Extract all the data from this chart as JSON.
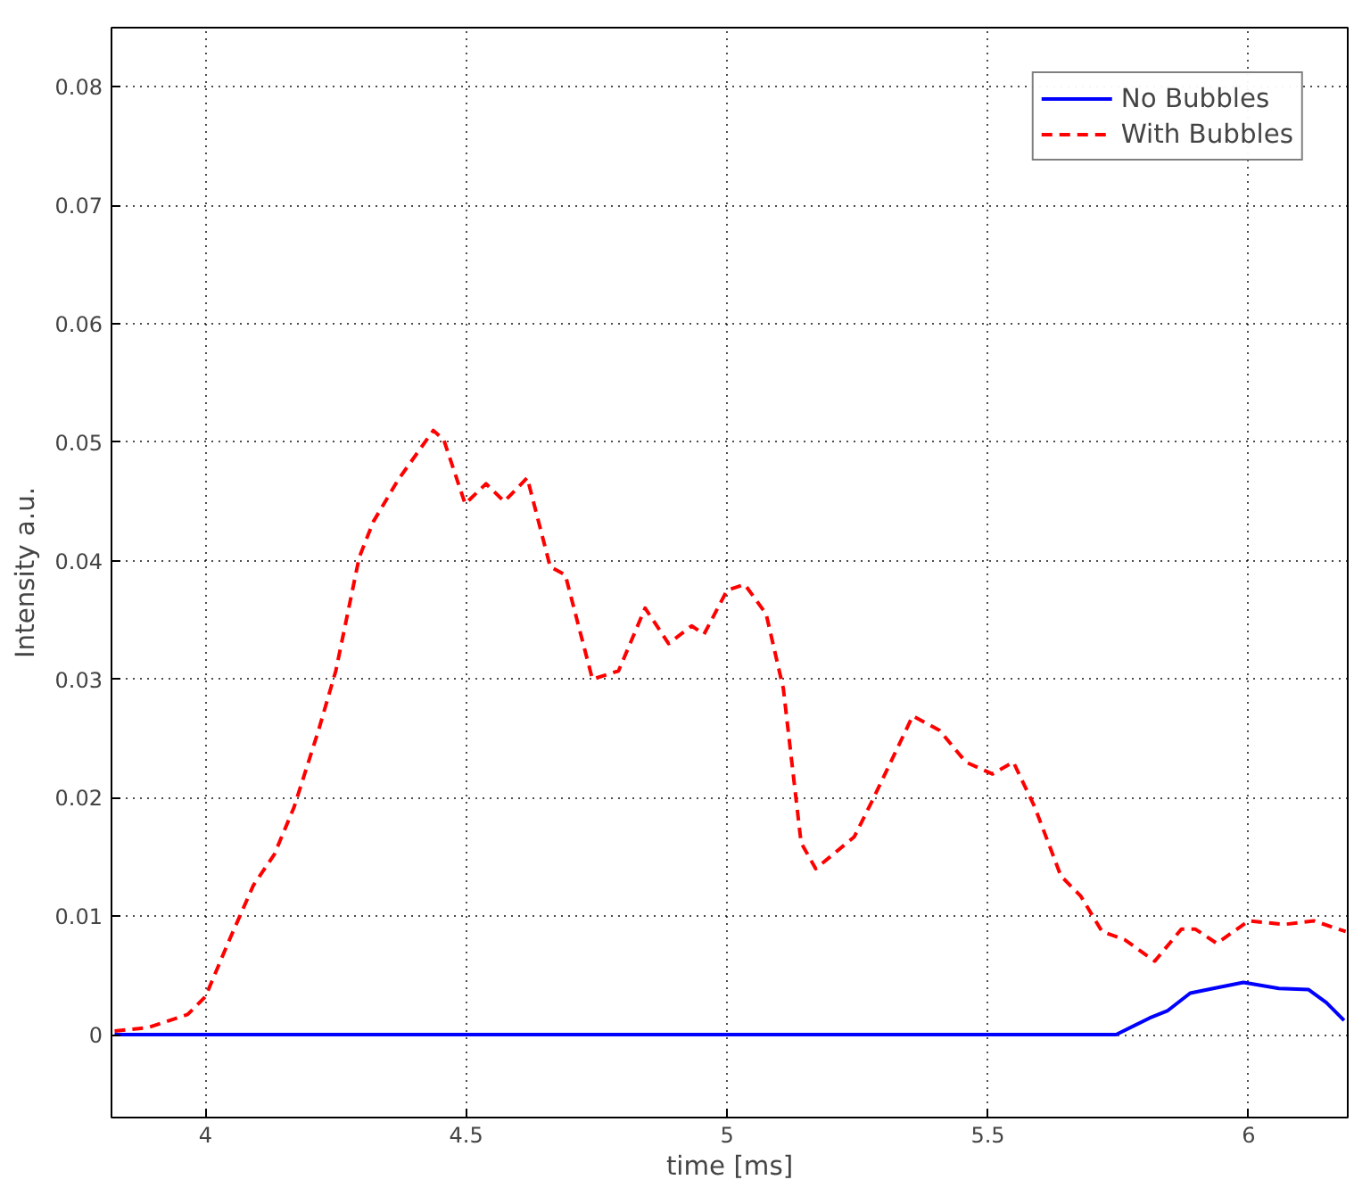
{
  "chart_data": {
    "type": "line",
    "xlabel": "time [ms]",
    "ylabel": "Intensity a.u.",
    "xlim": [
      3.82,
      6.19
    ],
    "ylim": [
      -0.007,
      0.085
    ],
    "xticks": [
      4,
      4.5,
      5,
      5.5,
      6
    ],
    "yticks": [
      0,
      0.01,
      0.02,
      0.03,
      0.04,
      0.05,
      0.06,
      0.07,
      0.08
    ],
    "grid": true,
    "legend": "top right",
    "series": [
      {
        "name": "No Bubbles",
        "color": "#0000ff",
        "line_style": "solid",
        "x": [
          3.826,
          4.5,
          5.0,
          5.5,
          5.746,
          5.81,
          5.844,
          5.888,
          5.932,
          5.99,
          6.058,
          6.115,
          6.149,
          6.183
        ],
        "values": [
          0,
          0,
          0,
          0,
          0,
          0.0014,
          0.002,
          0.0035,
          0.0039,
          0.0044,
          0.0039,
          0.0038,
          0.0027,
          0.0012
        ]
      },
      {
        "name": "With Bubbles",
        "color": "#ff0000",
        "line_style": "dashed",
        "x": [
          3.826,
          3.89,
          3.966,
          4.0,
          4.047,
          4.092,
          4.132,
          4.17,
          4.217,
          4.25,
          4.295,
          4.322,
          4.369,
          4.437,
          4.457,
          4.498,
          4.538,
          4.573,
          4.617,
          4.661,
          4.69,
          4.742,
          4.792,
          4.843,
          4.888,
          4.932,
          4.956,
          5.0,
          5.034,
          5.075,
          5.108,
          5.142,
          5.17,
          5.244,
          5.278,
          5.356,
          5.407,
          5.458,
          5.509,
          5.549,
          5.59,
          5.64,
          5.678,
          5.719,
          5.763,
          5.82,
          5.871,
          5.898,
          5.939,
          6.0,
          6.068,
          6.125,
          6.186
        ],
        "values": [
          0.0003,
          0.0006,
          0.0017,
          0.0032,
          0.0081,
          0.0126,
          0.0152,
          0.0192,
          0.0257,
          0.0307,
          0.0403,
          0.0433,
          0.0468,
          0.051,
          0.0502,
          0.0448,
          0.0465,
          0.045,
          0.047,
          0.0395,
          0.0388,
          0.03,
          0.0307,
          0.036,
          0.033,
          0.0345,
          0.0338,
          0.0375,
          0.038,
          0.0355,
          0.0292,
          0.0162,
          0.014,
          0.0167,
          0.0197,
          0.0269,
          0.0257,
          0.023,
          0.022,
          0.023,
          0.0192,
          0.0134,
          0.0117,
          0.0087,
          0.008,
          0.0062,
          0.0089,
          0.0089,
          0.0077,
          0.0096,
          0.0093,
          0.0096,
          0.0087
        ]
      }
    ]
  }
}
